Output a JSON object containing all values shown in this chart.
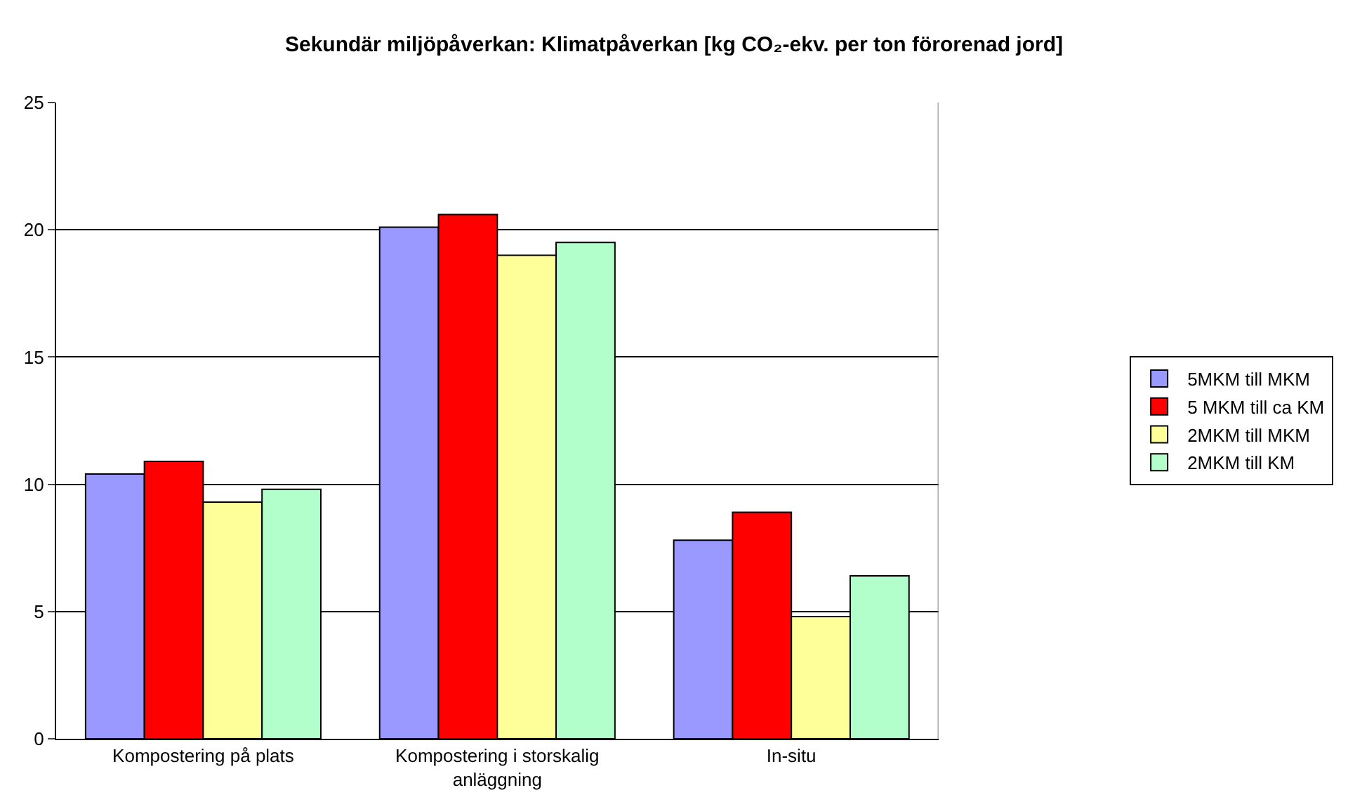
{
  "chart_data": {
    "type": "bar",
    "title": "Sekundär miljöpåverkan: Klimatpåverkan [kg CO₂-ekv. per ton förorenad jord]",
    "categories": [
      "Kompostering på plats",
      "Kompostering i storskalig anläggning",
      "In-situ"
    ],
    "series": [
      {
        "name": "5MKM till MKM",
        "color": "#9999ff",
        "values": [
          10.4,
          20.1,
          7.8
        ]
      },
      {
        "name": "5 MKM till ca KM",
        "color": "#ff0000",
        "values": [
          10.9,
          20.6,
          8.9
        ]
      },
      {
        "name": "2MKM till MKM",
        "color": "#ffff99",
        "values": [
          9.3,
          19.0,
          4.8
        ]
      },
      {
        "name": "2MKM till KM",
        "color": "#b3ffcc",
        "values": [
          9.8,
          19.5,
          6.4
        ]
      }
    ],
    "ylim": [
      0,
      25
    ],
    "yticks": [
      0,
      5,
      10,
      15,
      20,
      25
    ],
    "grid": "y",
    "legend": "right"
  }
}
